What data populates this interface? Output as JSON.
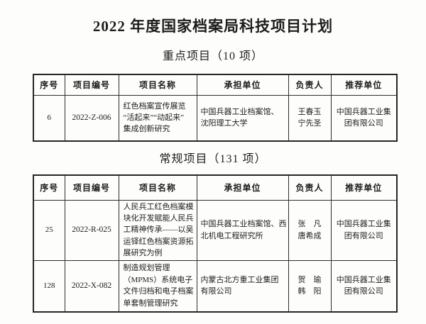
{
  "page": {
    "title": "2022 年度国家档案局科技项目计划"
  },
  "sections": [
    {
      "heading": "重点项目（10 项）",
      "columns": [
        "序号",
        "项目编号",
        "项目名称",
        "承担单位",
        "负责人",
        "推荐单位"
      ],
      "rows": [
        {
          "seq": "6",
          "code": "2022-Z-006",
          "name": "红色档案宣传展览\n“活起来”“动起来”\n集成创新研究",
          "undertaker": "中国兵器工业档案馆、\n沈阳理工大学",
          "leader": "王春玉\n宁先圣",
          "recommender": "中国兵器工业集\n团有限公司"
        }
      ]
    },
    {
      "heading": "常规项目（131 项）",
      "columns": [
        "序号",
        "项目编号",
        "项目名称",
        "承担单位",
        "负责人",
        "推荐单位"
      ],
      "rows": [
        {
          "seq": "25",
          "code": "2022-R-025",
          "name": "人民兵工红色档案模\n块化开发赋能人民兵\n工精神传承——以吴\n运铎红色档案资源拓\n展研究为例",
          "undertaker": "中国兵器工业档案馆、西\n北机电工程研究所",
          "leader": "张　凡\n唐希成",
          "recommender": "中国兵器工业集\n团有限公司"
        },
        {
          "seq": "128",
          "code": "2022-X-082",
          "name": "制造规划管理\n（MPMS）系统电子\n文件归档和电子档案\n单套制管理研究",
          "undertaker": "内蒙古北方重工业集团\n有限公司",
          "leader": "贺　瑜\n韩　阳",
          "recommender": "中国兵器工业集\n团有限公司"
        }
      ]
    }
  ]
}
